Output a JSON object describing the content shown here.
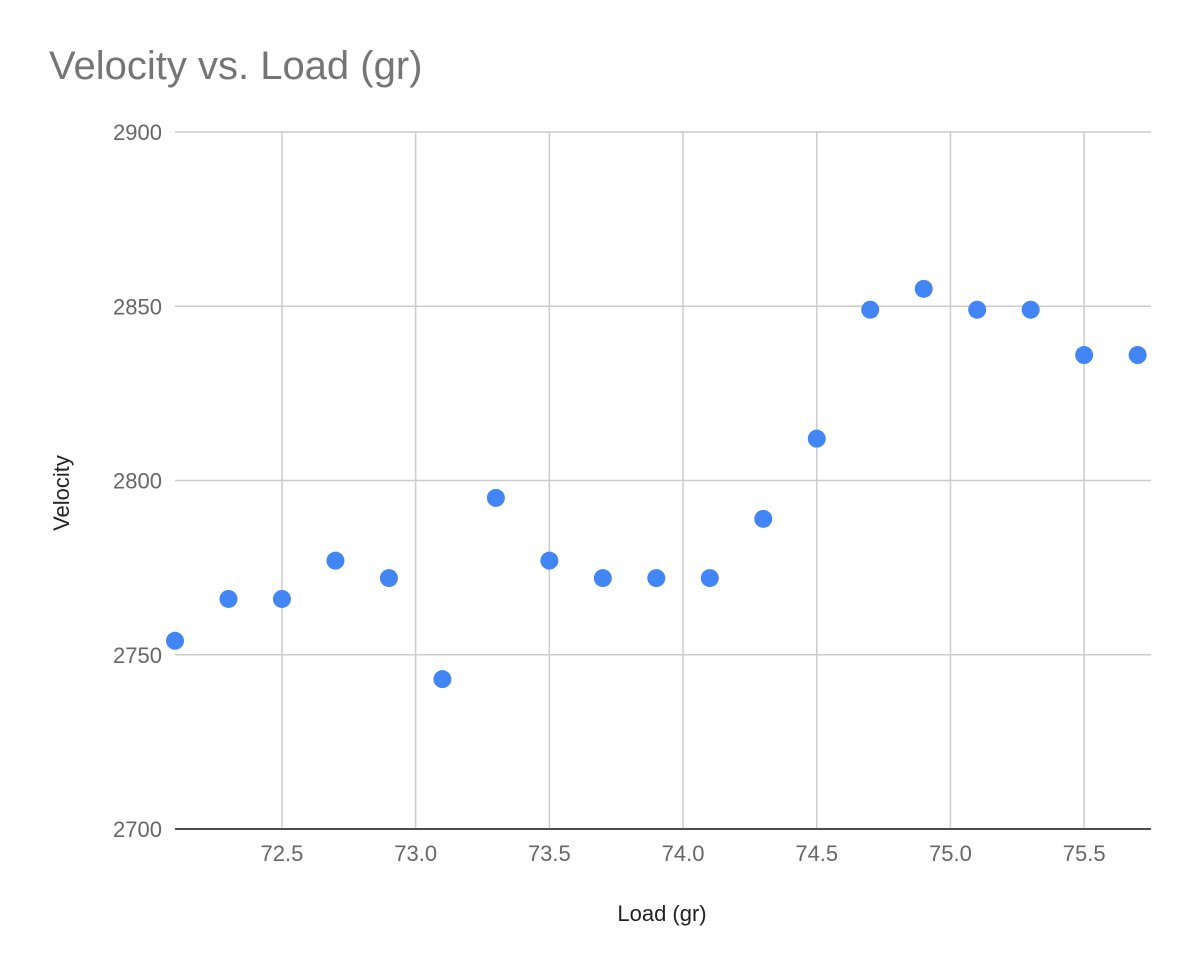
{
  "chart_data": {
    "type": "scatter",
    "title": "Velocity vs. Load (gr)",
    "xlabel": "Load (gr)",
    "ylabel": "Velocity",
    "xlim": [
      72.1,
      75.75
    ],
    "ylim": [
      2700,
      2900
    ],
    "x_ticks": [
      "72.5",
      "73.0",
      "73.5",
      "74.0",
      "74.5",
      "75.0",
      "75.5"
    ],
    "y_ticks": [
      "2700",
      "2750",
      "2800",
      "2850",
      "2900"
    ],
    "grid": true,
    "legend": "none",
    "point_color": "#4285f4",
    "x": [
      72.1,
      72.3,
      72.5,
      72.7,
      72.9,
      73.1,
      73.3,
      73.5,
      73.7,
      73.9,
      74.1,
      74.3,
      74.5,
      74.7,
      74.9,
      75.1,
      75.3,
      75.5,
      75.7
    ],
    "y": [
      2754,
      2766,
      2766,
      2777,
      2772,
      2743,
      2795,
      2777,
      2772,
      2772,
      2772,
      2789,
      2812,
      2849,
      2855,
      2849,
      2849,
      2836,
      2836
    ]
  }
}
